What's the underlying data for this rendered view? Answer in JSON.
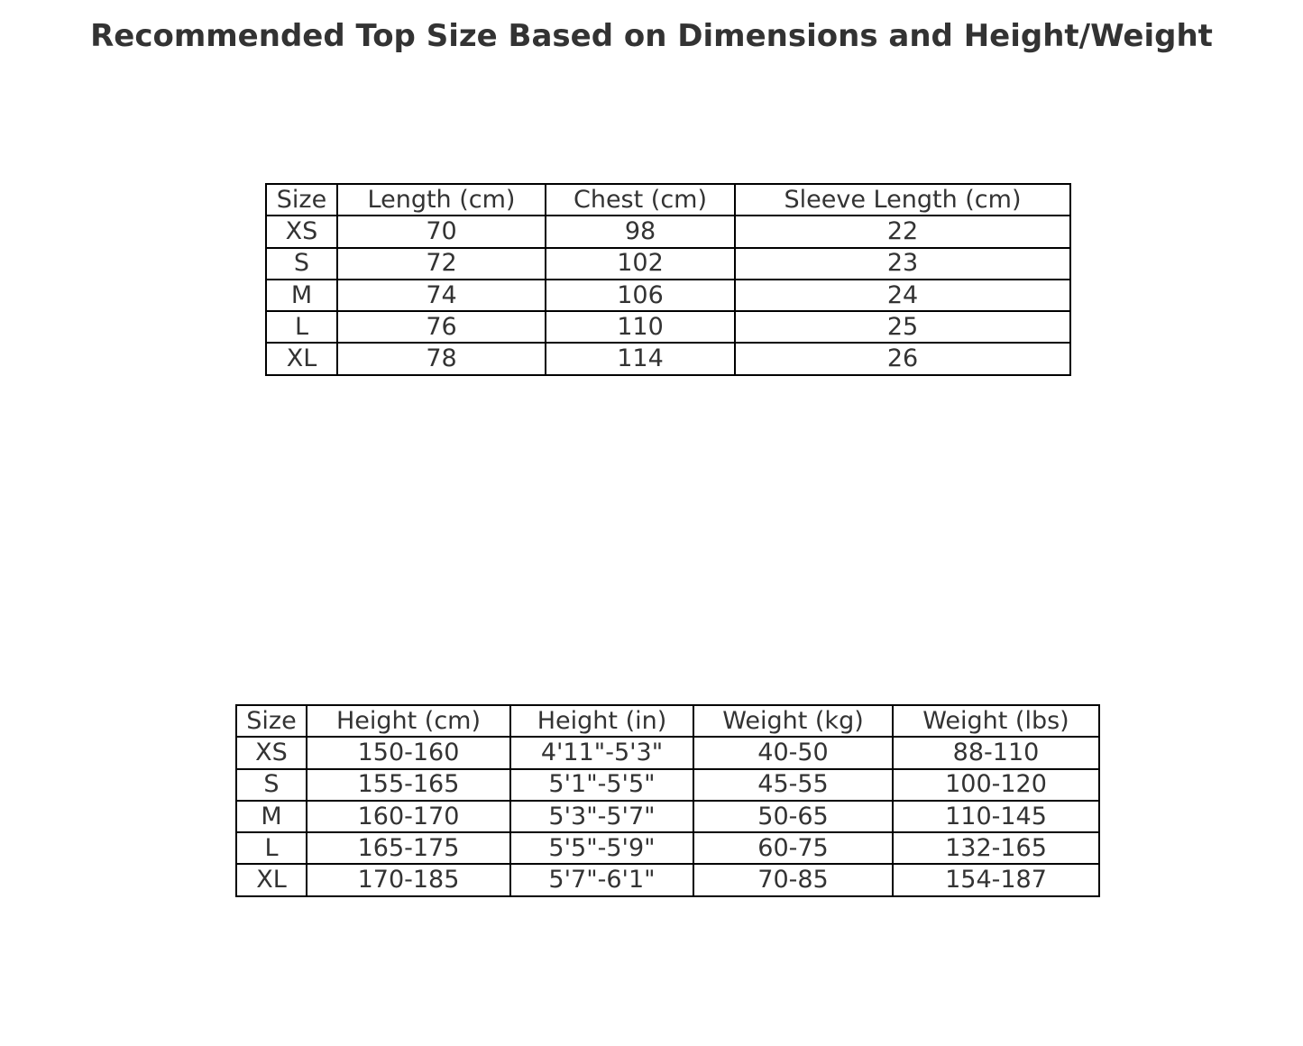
{
  "chart_data": [
    {
      "type": "table",
      "title": "Recommended Top Size Based on Dimensions and Height/Weight",
      "columns": [
        "Size",
        "Length (cm)",
        "Chest (cm)",
        "Sleeve Length (cm)"
      ],
      "rows": [
        [
          "XS",
          "70",
          "98",
          "22"
        ],
        [
          "S",
          "72",
          "102",
          "23"
        ],
        [
          "M",
          "74",
          "106",
          "24"
        ],
        [
          "L",
          "76",
          "110",
          "25"
        ],
        [
          "XL",
          "78",
          "114",
          "26"
        ]
      ]
    },
    {
      "type": "table",
      "columns": [
        "Size",
        "Height (cm)",
        "Height (in)",
        "Weight (kg)",
        "Weight (lbs)"
      ],
      "rows": [
        [
          "XS",
          "150-160",
          "4'11\"-5'3\"",
          "40-50",
          "88-110"
        ],
        [
          "S",
          "155-165",
          "5'1\"-5'5\"",
          "45-55",
          "100-120"
        ],
        [
          "M",
          "160-170",
          "5'3\"-5'7\"",
          "50-65",
          "110-145"
        ],
        [
          "L",
          "165-175",
          "5'5\"-5'9\"",
          "60-75",
          "132-165"
        ],
        [
          "XL",
          "170-185",
          "5'7\"-6'1\"",
          "70-85",
          "154-187"
        ]
      ]
    }
  ],
  "colors": {
    "text": "#333333",
    "border": "#000000",
    "background": "#ffffff"
  }
}
